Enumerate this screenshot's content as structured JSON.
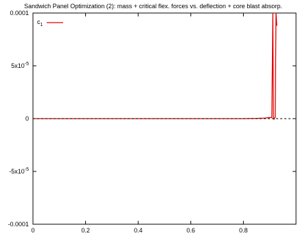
{
  "chart_data": {
    "type": "line",
    "title": "Sandwich Panel Optimization (2): mass + critical flex. forces vs. deflection + core blast absorp.",
    "xlabel": "",
    "ylabel": "",
    "xlim": [
      0,
      1
    ],
    "ylim": [
      -0.0001,
      0.0001
    ],
    "grid": false,
    "legend_position": "top-left",
    "x_ticks": [
      {
        "value": 0,
        "label": "0"
      },
      {
        "value": 0.2,
        "label": "0.2"
      },
      {
        "value": 0.4,
        "label": "0.4"
      },
      {
        "value": 0.6,
        "label": "0.6"
      },
      {
        "value": 0.8,
        "label": "0.8"
      }
    ],
    "y_ticks": [
      {
        "value": 0.0001,
        "label": "0.0001"
      },
      {
        "value": 5e-05,
        "label": "5x10",
        "exp": "-5"
      },
      {
        "value": 0,
        "label": "0"
      },
      {
        "value": -5e-05,
        "label": "-5x10",
        "exp": "-5"
      },
      {
        "value": -0.0001,
        "label": "-0.0001"
      }
    ],
    "series": [
      {
        "name": "c",
        "name_sub": "1",
        "color": "#e00000",
        "points": [
          [
            0,
            0
          ],
          [
            0.1,
            0
          ],
          [
            0.2,
            0
          ],
          [
            0.3,
            0
          ],
          [
            0.4,
            0
          ],
          [
            0.5,
            0
          ],
          [
            0.6,
            0
          ],
          [
            0.7,
            0
          ],
          [
            0.8,
            0
          ],
          [
            0.85,
            2e-07
          ],
          [
            0.88,
            5e-07
          ],
          [
            0.9,
            1e-06
          ],
          [
            0.908,
            1e-06
          ],
          [
            0.912,
            0.0001
          ],
          [
            0.914,
            2e-06
          ],
          [
            0.916,
            -1e-06
          ],
          [
            0.918,
            5e-07
          ],
          [
            0.921,
            1e-06
          ],
          [
            0.924,
            0.0001
          ],
          [
            0.926,
            9.2e-05
          ],
          [
            0.927,
            8.8e-05
          ]
        ]
      },
      {
        "name": "",
        "color": "#000000",
        "dashed": true,
        "points": [
          [
            0,
            0
          ],
          [
            1,
            0
          ]
        ]
      }
    ]
  }
}
